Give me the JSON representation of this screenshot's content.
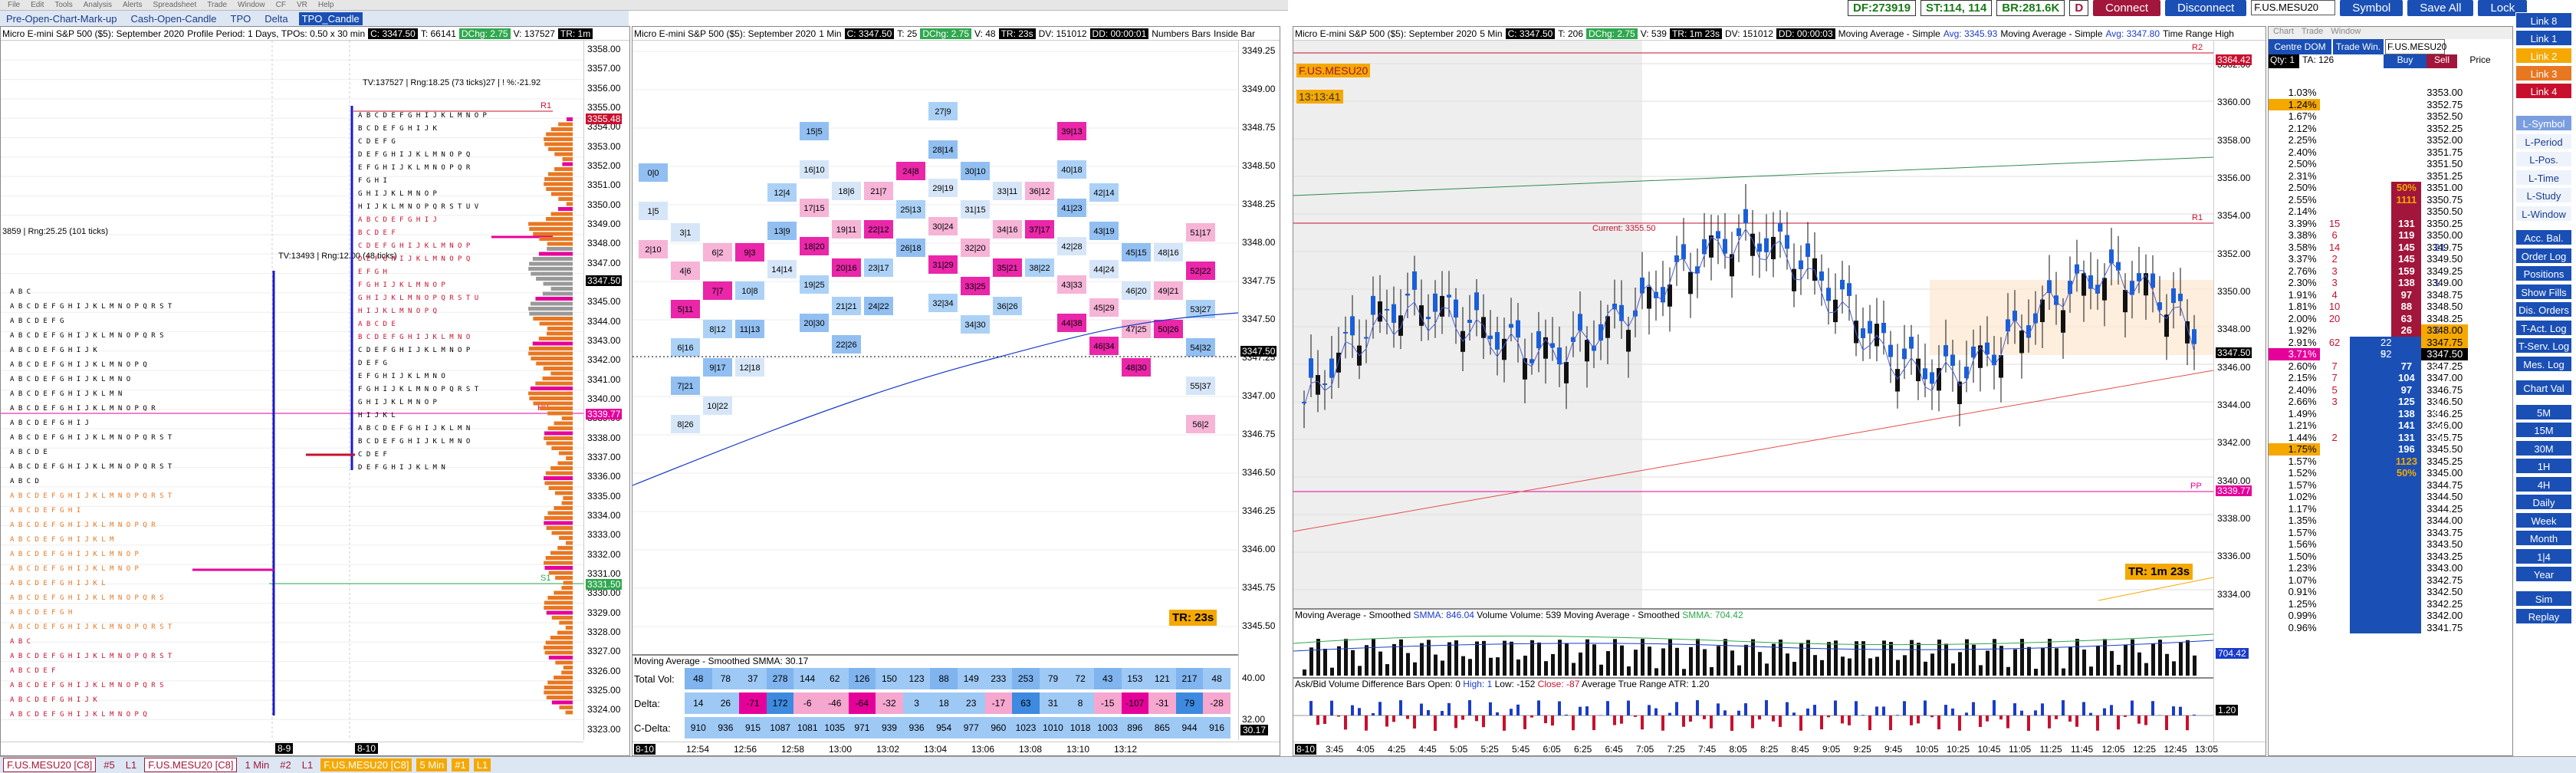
{
  "menu": [
    "File",
    "Edit",
    "Tools",
    "Analysis",
    "Alerts",
    "Spreadsheet",
    "Trade",
    "Window",
    "CF",
    "VR",
    "Help"
  ],
  "tabs": [
    "Pre-Open-Chart-Mark-up",
    "Cash-Open-Candle",
    "TPO",
    "Delta",
    "TPO_Candle"
  ],
  "top": {
    "df": "DF:273919",
    "st": "ST:114, 114",
    "br": "BR:281.6K",
    "d": "D",
    "connect": "Connect",
    "disconnect": "Disconnect",
    "symbol_input": "F.US.MESU20",
    "symbol_btn": "Symbol",
    "save_all": "Save All",
    "lock": "Lock"
  },
  "p1": {
    "title_a": "Micro E-mini S&P 500 ($5): September 2020",
    "title_b": "Profile Period: 1 Days, TPOs: 0.50 x 30 min",
    "c": "C: 3347.50",
    "t": "T: 66141",
    "dchg": "DChg: 2.75",
    "v": "V: 137527",
    "tr": "TR: 1m",
    "tv1": "TV:137527 | Rng:18.25 (73 ticks)27 | ! %:-21.92",
    "tv2": "3859 | Rng:25.25 (101 ticks)",
    "tv3": "TV:13493 | Rng:12.00 (48 ticks)",
    "r1": "R1",
    "p": "PP",
    "s1": "S1",
    "lbl_r1": "3355.48",
    "lbl_last": "3347.50",
    "lbl_pp": "3339.77",
    "lbl_s1": "3331.50",
    "yaxis": [
      "3358.00",
      "3357.00",
      "3356.00",
      "3355.00",
      "3354.00",
      "3353.00",
      "3352.00",
      "3351.00",
      "3350.00",
      "3349.00",
      "3348.00",
      "3347.00",
      "3346.00",
      "3345.00",
      "3344.00",
      "3343.00",
      "3342.00",
      "3341.00",
      "3340.00",
      "3339.00",
      "3338.00",
      "3337.00",
      "3336.00",
      "3335.00",
      "3334.00",
      "3333.00",
      "3332.00",
      "3331.00",
      "3330.00",
      "3329.00",
      "3328.00",
      "3327.00",
      "3326.00",
      "3325.00",
      "3324.00",
      "3323.00"
    ],
    "xlabels": [
      "8-9",
      "8-10"
    ]
  },
  "p2": {
    "title": "Micro E-mini S&P 500 ($5): September 2020",
    "int": "1 Min",
    "c": "C: 3347.50",
    "t": "T: 25",
    "dchg": "DChg: 2.75",
    "v": "V: 48",
    "tr": "TR: 23s",
    "dv": "DV: 151012",
    "dd": "DD: 00:00:01",
    "nb": "Numbers Bars",
    "ib": "Inside Bar",
    "yaxis": [
      "3349.25",
      "3349.00",
      "3348.75",
      "3348.50",
      "3348.25",
      "3348.00",
      "3347.75",
      "3347.50",
      "3347.25",
      "3347.00",
      "3346.75",
      "3346.50",
      "3346.25",
      "3346.00",
      "3345.75",
      "3345.50"
    ],
    "last": "3347.50",
    "timer": "TR: 23s",
    "ma": "Moving Average - Smoothed",
    "ma_val": "SMMA: 30.17",
    "rows": [
      "Total Vol:",
      "Delta:",
      "C-Delta:"
    ],
    "vol": [
      "48",
      "78",
      "37",
      "278",
      "144",
      "62",
      "126",
      "150",
      "123",
      "88",
      "149",
      "233",
      "253",
      "79",
      "72",
      "43",
      "153",
      "121",
      "217",
      "48"
    ],
    "delta": [
      "14",
      "26",
      "-71",
      "172",
      "-6",
      "-46",
      "-64",
      "-32",
      "3",
      "18",
      "23",
      "-17",
      "63",
      "31",
      "8",
      "-15",
      "-107",
      "-31",
      "79",
      "-28"
    ],
    "cdelta": [
      "910",
      "936",
      "915",
      "1087",
      "1081",
      "1035",
      "971",
      "939",
      "936",
      "954",
      "977",
      "960",
      "1023",
      "1010",
      "1018",
      "1003",
      "896",
      "865",
      "944",
      "916"
    ],
    "sub_axis": [
      "40.00",
      "32.00",
      "30.17"
    ],
    "xlabels": [
      "8-10",
      "12:54",
      "12:56",
      "12:58",
      "13:00",
      "13:02",
      "13:04",
      "13:06",
      "13:08",
      "13:10",
      "13:12"
    ]
  },
  "p3": {
    "title": "F.US.MESU20 [C8] 5 Min #1",
    "title_b": "Micro E-mini S&P 500 ($5): September 2020",
    "int": "5 Min",
    "c": "C: 3347.50",
    "t": "T: 206",
    "dchg": "DChg: 2.75",
    "v": "V: 539",
    "tr": "TR: 1m 23s",
    "dv": "DV: 151012",
    "dd": "DD: 00:00:03",
    "ma1": "Moving Average - Simple",
    "ma1v": "Avg: 3345.93",
    "ma2": "Moving Average - Simple",
    "ma2v": "Avg: 3347.80",
    "trh": "Time Range High",
    "sym_badge": "F.US.MESU20",
    "time_badge": "13:13:41",
    "current": "Current: 3355.50",
    "r2": "R2",
    "r1": "R1",
    "pp": "PP",
    "timer": "TR: 1m 23s",
    "yaxis": [
      "3362.00",
      "3360.00",
      "3358.00",
      "3356.00",
      "3354.00",
      "3352.00",
      "3350.00",
      "3348.00",
      "3346.00",
      "3344.00",
      "3342.00",
      "3340.00",
      "3338.00",
      "3336.00",
      "3334.00"
    ],
    "r2lbl": "3364.42",
    "lastlbl": "3347.50",
    "pplbl": "3339.77",
    "ma_sub": "Moving Average - Smoothed",
    "smma1": "SMMA: 846.04",
    "vol_sub": "Volume",
    "vol_val": "Volume: 539",
    "ma_sub2": "Moving Average - Smoothed",
    "smma2": "SMMA: 704.42",
    "ab": "Ask/Bid Volume Difference Bars",
    "ab_open": "Open: 0",
    "ab_high": "High: 1",
    "ab_low": "Low: -152",
    "ab_close": "Close: -87",
    "atr": "Average True Range",
    "atr_val": "ATR: 1.20",
    "sub_lbl1": "704.42",
    "sub_lbl2": "1.20",
    "xlabels": [
      "3:45",
      "4:05",
      "4:25",
      "4:45",
      "5:05",
      "5:25",
      "5:45",
      "6:05",
      "6:25",
      "6:45",
      "7:05",
      "7:25",
      "7:45",
      "8:05",
      "8:25",
      "8:45",
      "9:05",
      "9:25",
      "9:45",
      "10:05",
      "10:25",
      "10:45",
      "11:05",
      "11:25",
      "11:45",
      "12:05",
      "12:25",
      "12:45",
      "13:05"
    ],
    "xfirst": "8-10"
  },
  "dom": {
    "menu": [
      "Chart",
      "Trade",
      "Window"
    ],
    "head": [
      "Centre DOM",
      "Trade Win.",
      "Buy",
      "Sell",
      "Price"
    ],
    "sym": "F.US.MESU20",
    "qty": "Qty: 1",
    "ta": "TA: 126",
    "rows": [
      {
        "pct": "1.03%",
        "bid": "",
        "ask": "",
        "price": "3353.00"
      },
      {
        "pct": "1.24%",
        "bid": "",
        "ask": "",
        "price": "3352.75"
      },
      {
        "pct": "1.67%",
        "bid": "",
        "ask": "",
        "price": "3352.50"
      },
      {
        "pct": "2.12%",
        "bid": "",
        "ask": "",
        "price": "3352.25"
      },
      {
        "pct": "2.25%",
        "bid": "",
        "ask": "",
        "price": "3352.00"
      },
      {
        "pct": "2.40%",
        "bid": "",
        "ask": "",
        "price": "3351.75"
      },
      {
        "pct": "2.50%",
        "bid": "",
        "ask": "",
        "price": "3351.50"
      },
      {
        "pct": "2.31%",
        "bid": "",
        "ask": "",
        "price": "3351.25"
      },
      {
        "pct": "2.50%",
        "bid": "",
        "ask": "50%",
        "price": "3351.00"
      },
      {
        "pct": "2.55%",
        "bid": "",
        "ask": "1111",
        "price": "3350.75"
      },
      {
        "pct": "2.14%",
        "bid": "",
        "ask": "",
        "price": "3350.50"
      },
      {
        "pct": "3.39%",
        "bid": "15",
        "ask": "131",
        "price": "3350.25"
      },
      {
        "pct": "3.38%",
        "bid": "6",
        "ask": "119",
        "price": "3350.00"
      },
      {
        "pct": "3.58%",
        "bid": "14",
        "ask": "145",
        "price": "3349.75"
      },
      {
        "pct": "3.37%",
        "bid": "2",
        "ask": "145",
        "price": "3349.50"
      },
      {
        "pct": "2.76%",
        "bid": "3",
        "ask": "159",
        "price": "3349.25"
      },
      {
        "pct": "2.30%",
        "bid": "3",
        "ask": "138",
        "price": "3349.00"
      },
      {
        "pct": "1.91%",
        "bid": "4",
        "ask": "97",
        "price": "3348.75"
      },
      {
        "pct": "1.81%",
        "bid": "10",
        "ask": "88",
        "price": "3348.50"
      },
      {
        "pct": "2.00%",
        "bid": "20",
        "ask": "63",
        "price": "3348.25"
      },
      {
        "pct": "1.92%",
        "bid": "",
        "ask": "26",
        "price": "3348.00"
      },
      {
        "pct": "2.91%",
        "bid": "62",
        "ask": "",
        "price": "3347.75"
      },
      {
        "pct": "3.71%",
        "bid": "",
        "ask": "",
        "price": "3347.50"
      },
      {
        "pct": "2.60%",
        "bid": "7",
        "ask": "77",
        "price": "3347.25"
      },
      {
        "pct": "2.15%",
        "bid": "7",
        "ask": "104",
        "price": "3347.00"
      },
      {
        "pct": "2.40%",
        "bid": "5",
        "ask": "97",
        "price": "3346.75"
      },
      {
        "pct": "2.66%",
        "bid": "3",
        "ask": "125",
        "price": "3346.50"
      },
      {
        "pct": "1.49%",
        "bid": "",
        "ask": "138",
        "price": "3346.25"
      },
      {
        "pct": "1.21%",
        "bid": "",
        "ask": "141",
        "price": "3346.00"
      },
      {
        "pct": "1.44%",
        "bid": "2",
        "ask": "131",
        "price": "3345.75"
      },
      {
        "pct": "1.75%",
        "bid": "",
        "ask": "196",
        "price": "3345.50"
      },
      {
        "pct": "1.57%",
        "bid": "",
        "ask": "1123",
        "price": "3345.25"
      },
      {
        "pct": "1.52%",
        "bid": "",
        "ask": "50%",
        "price": "3345.00"
      },
      {
        "pct": "1.57%",
        "bid": "",
        "ask": "",
        "price": "3344.75"
      },
      {
        "pct": "1.02%",
        "bid": "",
        "ask": "",
        "price": "3344.50"
      },
      {
        "pct": "1.17%",
        "bid": "",
        "ask": "",
        "price": "3344.25"
      },
      {
        "pct": "1.35%",
        "bid": "",
        "ask": "",
        "price": "3344.00"
      },
      {
        "pct": "1.57%",
        "bid": "",
        "ask": "",
        "price": "3343.75"
      },
      {
        "pct": "1.56%",
        "bid": "",
        "ask": "",
        "price": "3343.50"
      },
      {
        "pct": "1.50%",
        "bid": "",
        "ask": "",
        "price": "3343.25"
      },
      {
        "pct": "1.23%",
        "bid": "",
        "ask": "",
        "price": "3343.00"
      },
      {
        "pct": "1.07%",
        "bid": "",
        "ask": "",
        "price": "3342.75"
      },
      {
        "pct": "0.91%",
        "bid": "",
        "ask": "",
        "price": "3342.50"
      },
      {
        "pct": "1.25%",
        "bid": "",
        "ask": "",
        "price": "3342.25"
      },
      {
        "pct": "0.99%",
        "bid": "",
        "ask": "",
        "price": "3342.00"
      },
      {
        "pct": "0.96%",
        "bid": "",
        "ask": "",
        "price": "3341.75"
      }
    ],
    "side_bid": [
      {
        "row": 13,
        "v": "21"
      },
      {
        "row": 16,
        "v": "1"
      },
      {
        "row": 20,
        "v": "6"
      },
      {
        "row": 21,
        "v": "22"
      },
      {
        "row": 22,
        "v": "92"
      },
      {
        "row": 23,
        "v": "2"
      },
      {
        "row": 26,
        "v": "3"
      },
      {
        "row": 27,
        "v": "5"
      },
      {
        "row": 28,
        "v": "24"
      },
      {
        "row": 29,
        "v": "14"
      },
      {
        "row": 22,
        "v": "5"
      }
    ]
  },
  "side": {
    "links": [
      "Link 8",
      "Link 1",
      "Link 2",
      "Link 3",
      "Link 4"
    ],
    "btns": [
      "L-Symbol",
      "L-Period",
      "L-Pos.",
      "L-Time",
      "L-Study",
      "L-Window",
      "Acc. Bal.",
      "Order Log",
      "Positions",
      "Show Fills",
      "Dis. Orders",
      "T-Act. Log",
      "T-Serv. Log",
      "Mes. Log",
      "Chart Val",
      "5M",
      "15M",
      "30M",
      "1H",
      "4H",
      "Daily",
      "Week",
      "Month",
      "1|4",
      "Year",
      "Sim",
      "Replay"
    ]
  },
  "status": [
    "F.US.MESU20 [C8]",
    "#5",
    "L1",
    "F.US.MESU20 [C8]",
    "1 Min",
    "#2",
    "L1",
    "F.US.MESU20 [C8]",
    "5 Min",
    "#1",
    "L1"
  ]
}
